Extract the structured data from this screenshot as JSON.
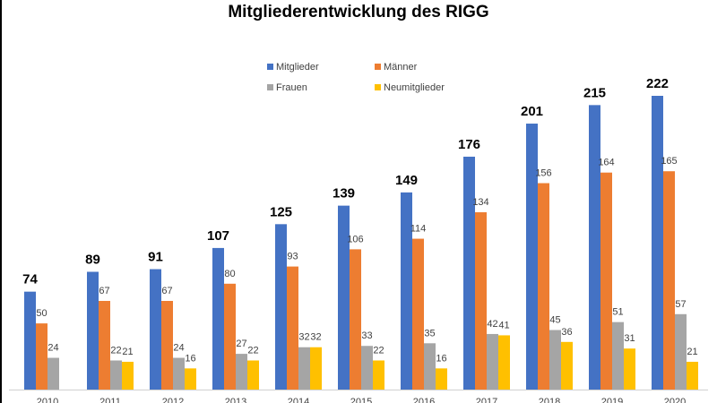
{
  "chart_data": {
    "type": "bar",
    "title": "Mitgliederentwicklung des RIGG",
    "xlabel": "",
    "ylabel": "",
    "categories": [
      "2010",
      "2011",
      "2012",
      "2013",
      "2014",
      "2015",
      "2016",
      "2017",
      "2018",
      "2019",
      "2020"
    ],
    "series": [
      {
        "name": "Mitglieder",
        "color": "#4472C4",
        "values": [
          74,
          89,
          91,
          107,
          125,
          139,
          149,
          176,
          201,
          215,
          222
        ]
      },
      {
        "name": "Männer",
        "color": "#ED7D31",
        "values": [
          50,
          67,
          67,
          80,
          93,
          106,
          114,
          134,
          156,
          164,
          165
        ]
      },
      {
        "name": "Frauen",
        "color": "#A5A5A5",
        "values": [
          24,
          22,
          24,
          27,
          32,
          33,
          35,
          42,
          45,
          51,
          57
        ]
      },
      {
        "name": "Neumitglieder",
        "color": "#FFC000",
        "values": [
          null,
          21,
          16,
          22,
          32,
          22,
          16,
          41,
          36,
          31,
          21
        ]
      }
    ],
    "ylim": [
      0,
      222
    ],
    "grid": false,
    "legend_position": "top-right",
    "data_labels": true
  }
}
